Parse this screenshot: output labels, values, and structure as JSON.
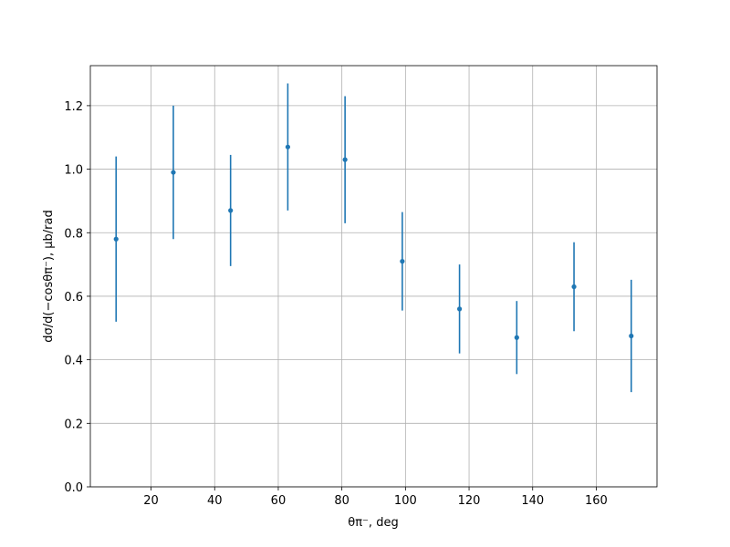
{
  "chart_data": {
    "type": "errorbar",
    "xlabel": "θπ⁻, deg",
    "ylabel": "dσ/d(−cosθπ⁻), μb/rad",
    "x": [
      9,
      27,
      45,
      63,
      81,
      99,
      117,
      135,
      153,
      171
    ],
    "series": [
      {
        "color": "#1f77b4",
        "values": [
          0.78,
          0.99,
          0.87,
          1.07,
          1.03,
          0.71,
          0.56,
          0.47,
          0.63,
          0.475
        ],
        "errors": [
          0.26,
          0.21,
          0.175,
          0.2,
          0.2,
          0.155,
          0.14,
          0.115,
          0.14,
          0.177
        ]
      }
    ],
    "xlim": [
      0.9,
      179.1
    ],
    "ylim": [
      0,
      1.326
    ],
    "xticks": [
      20,
      40,
      60,
      80,
      100,
      120,
      140,
      160
    ],
    "yticks": [
      {
        "value": 0,
        "label": "0.0"
      },
      {
        "value": 0.2,
        "label": "0.2"
      },
      {
        "value": 0.4,
        "label": "0.4"
      },
      {
        "value": 0.6,
        "label": "0.6"
      },
      {
        "value": 0.8,
        "label": "0.8"
      },
      {
        "value": 1,
        "label": "1.0"
      },
      {
        "value": 1.2,
        "label": "1.2"
      }
    ],
    "grid": true
  }
}
